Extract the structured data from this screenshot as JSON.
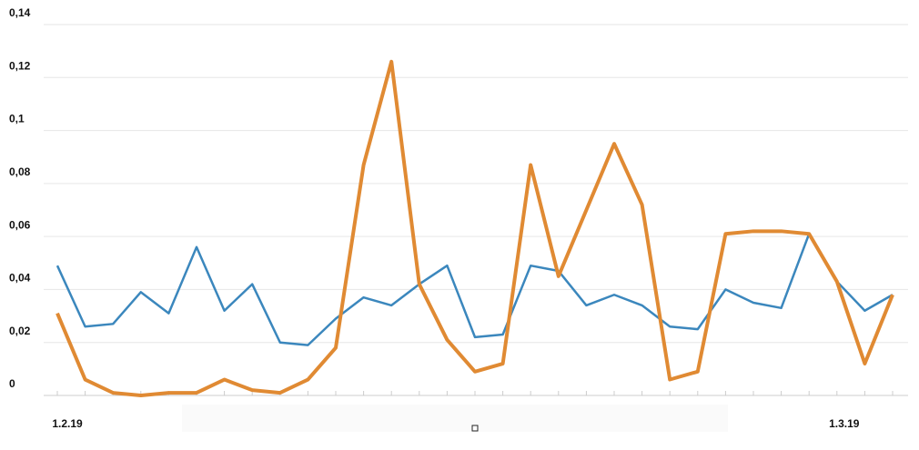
{
  "chart_data": {
    "type": "line",
    "categories": [
      "1.2.19",
      null,
      null,
      null,
      null,
      null,
      null,
      null,
      null,
      null,
      null,
      null,
      null,
      null,
      null,
      null,
      null,
      null,
      null,
      null,
      null,
      null,
      null,
      null,
      null,
      null,
      null,
      null,
      "1.3.19",
      null,
      null
    ],
    "series": [
      {
        "color": "#3b87bd",
        "values": [
          0.049,
          0.026,
          0.027,
          0.039,
          0.031,
          0.056,
          0.032,
          0.042,
          0.02,
          0.019,
          0.029,
          0.037,
          0.034,
          0.042,
          0.049,
          0.022,
          0.023,
          0.049,
          0.047,
          0.034,
          0.038,
          0.034,
          0.026,
          0.025,
          0.04,
          0.035,
          0.033,
          0.061,
          0.043,
          0.032,
          0.038
        ]
      },
      {
        "color": "#e08a33",
        "values": [
          0.031,
          0.006,
          0.001,
          0.0,
          0.001,
          0.001,
          0.006,
          0.002,
          0.001,
          0.006,
          0.018,
          0.087,
          0.126,
          0.042,
          0.021,
          0.009,
          0.012,
          0.087,
          0.045,
          0.07,
          0.095,
          0.072,
          0.006,
          0.009,
          0.061,
          0.062,
          0.062,
          0.061,
          0.043,
          0.012,
          0.038
        ]
      }
    ],
    "ylim": [
      0,
      0.14
    ],
    "yticks": [
      0,
      {
        "value": 0.02,
        "label": "0,02"
      },
      {
        "value": 0.04,
        "label": "0,04"
      },
      {
        "value": 0.06,
        "label": "0,06"
      },
      {
        "value": 0.08,
        "label": "0,08"
      },
      {
        "value": 0.1,
        "label": "0,1"
      },
      {
        "value": 0.12,
        "label": "0,12"
      },
      {
        "value": 0.14,
        "label": "0,14"
      }
    ],
    "grid": true
  }
}
